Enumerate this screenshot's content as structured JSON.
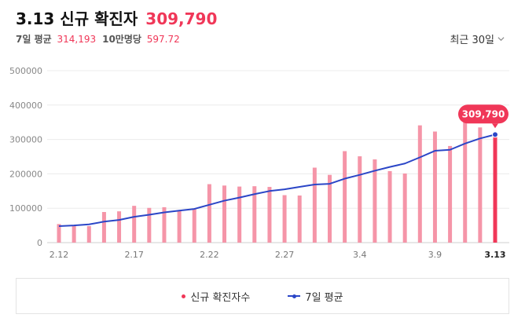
{
  "header": {
    "title": "3.13 신규 확진자",
    "value": "309,790",
    "avg_label": "7일 평균",
    "avg_value": "314,193",
    "per_label": "10만명당",
    "per_value": "597.72",
    "period": "최근 30일"
  },
  "chart_data": {
    "type": "bar",
    "series": [
      {
        "name": "신규 확진자수",
        "type": "bar",
        "color": "#f595a8",
        "highlight_color": "#f03758",
        "values": [
          54000,
          51000,
          48000,
          89000,
          91000,
          107000,
          101000,
          103000,
          93000,
          99000,
          170000,
          166000,
          163000,
          164000,
          162000,
          138000,
          137000,
          218000,
          197000,
          266000,
          251000,
          242000,
          208000,
          201000,
          341000,
          323000,
          281000,
          350000,
          335000,
          309790
        ]
      },
      {
        "name": "7일 평균",
        "type": "line",
        "color": "#2b46c7",
        "values": [
          48000,
          50000,
          53000,
          61000,
          66000,
          75000,
          81000,
          88000,
          93000,
          98000,
          110000,
          122000,
          131000,
          141000,
          150000,
          155000,
          162000,
          169000,
          171000,
          186000,
          197000,
          209000,
          220000,
          230000,
          248000,
          267000,
          270000,
          288000,
          303000,
          314193
        ]
      }
    ],
    "x_tick_labels": [
      "2.12",
      "2.17",
      "2.22",
      "2.27",
      "3.4",
      "3.9",
      "3.13"
    ],
    "x_tick_index": [
      0,
      5,
      10,
      15,
      20,
      25,
      29
    ],
    "y_ticks": [
      "0",
      "100000",
      "200000",
      "300000",
      "400000",
      "500000"
    ],
    "ylim": [
      0,
      500000
    ],
    "grid": true,
    "callout": "309,790",
    "legend": {
      "position": "bottom"
    }
  }
}
